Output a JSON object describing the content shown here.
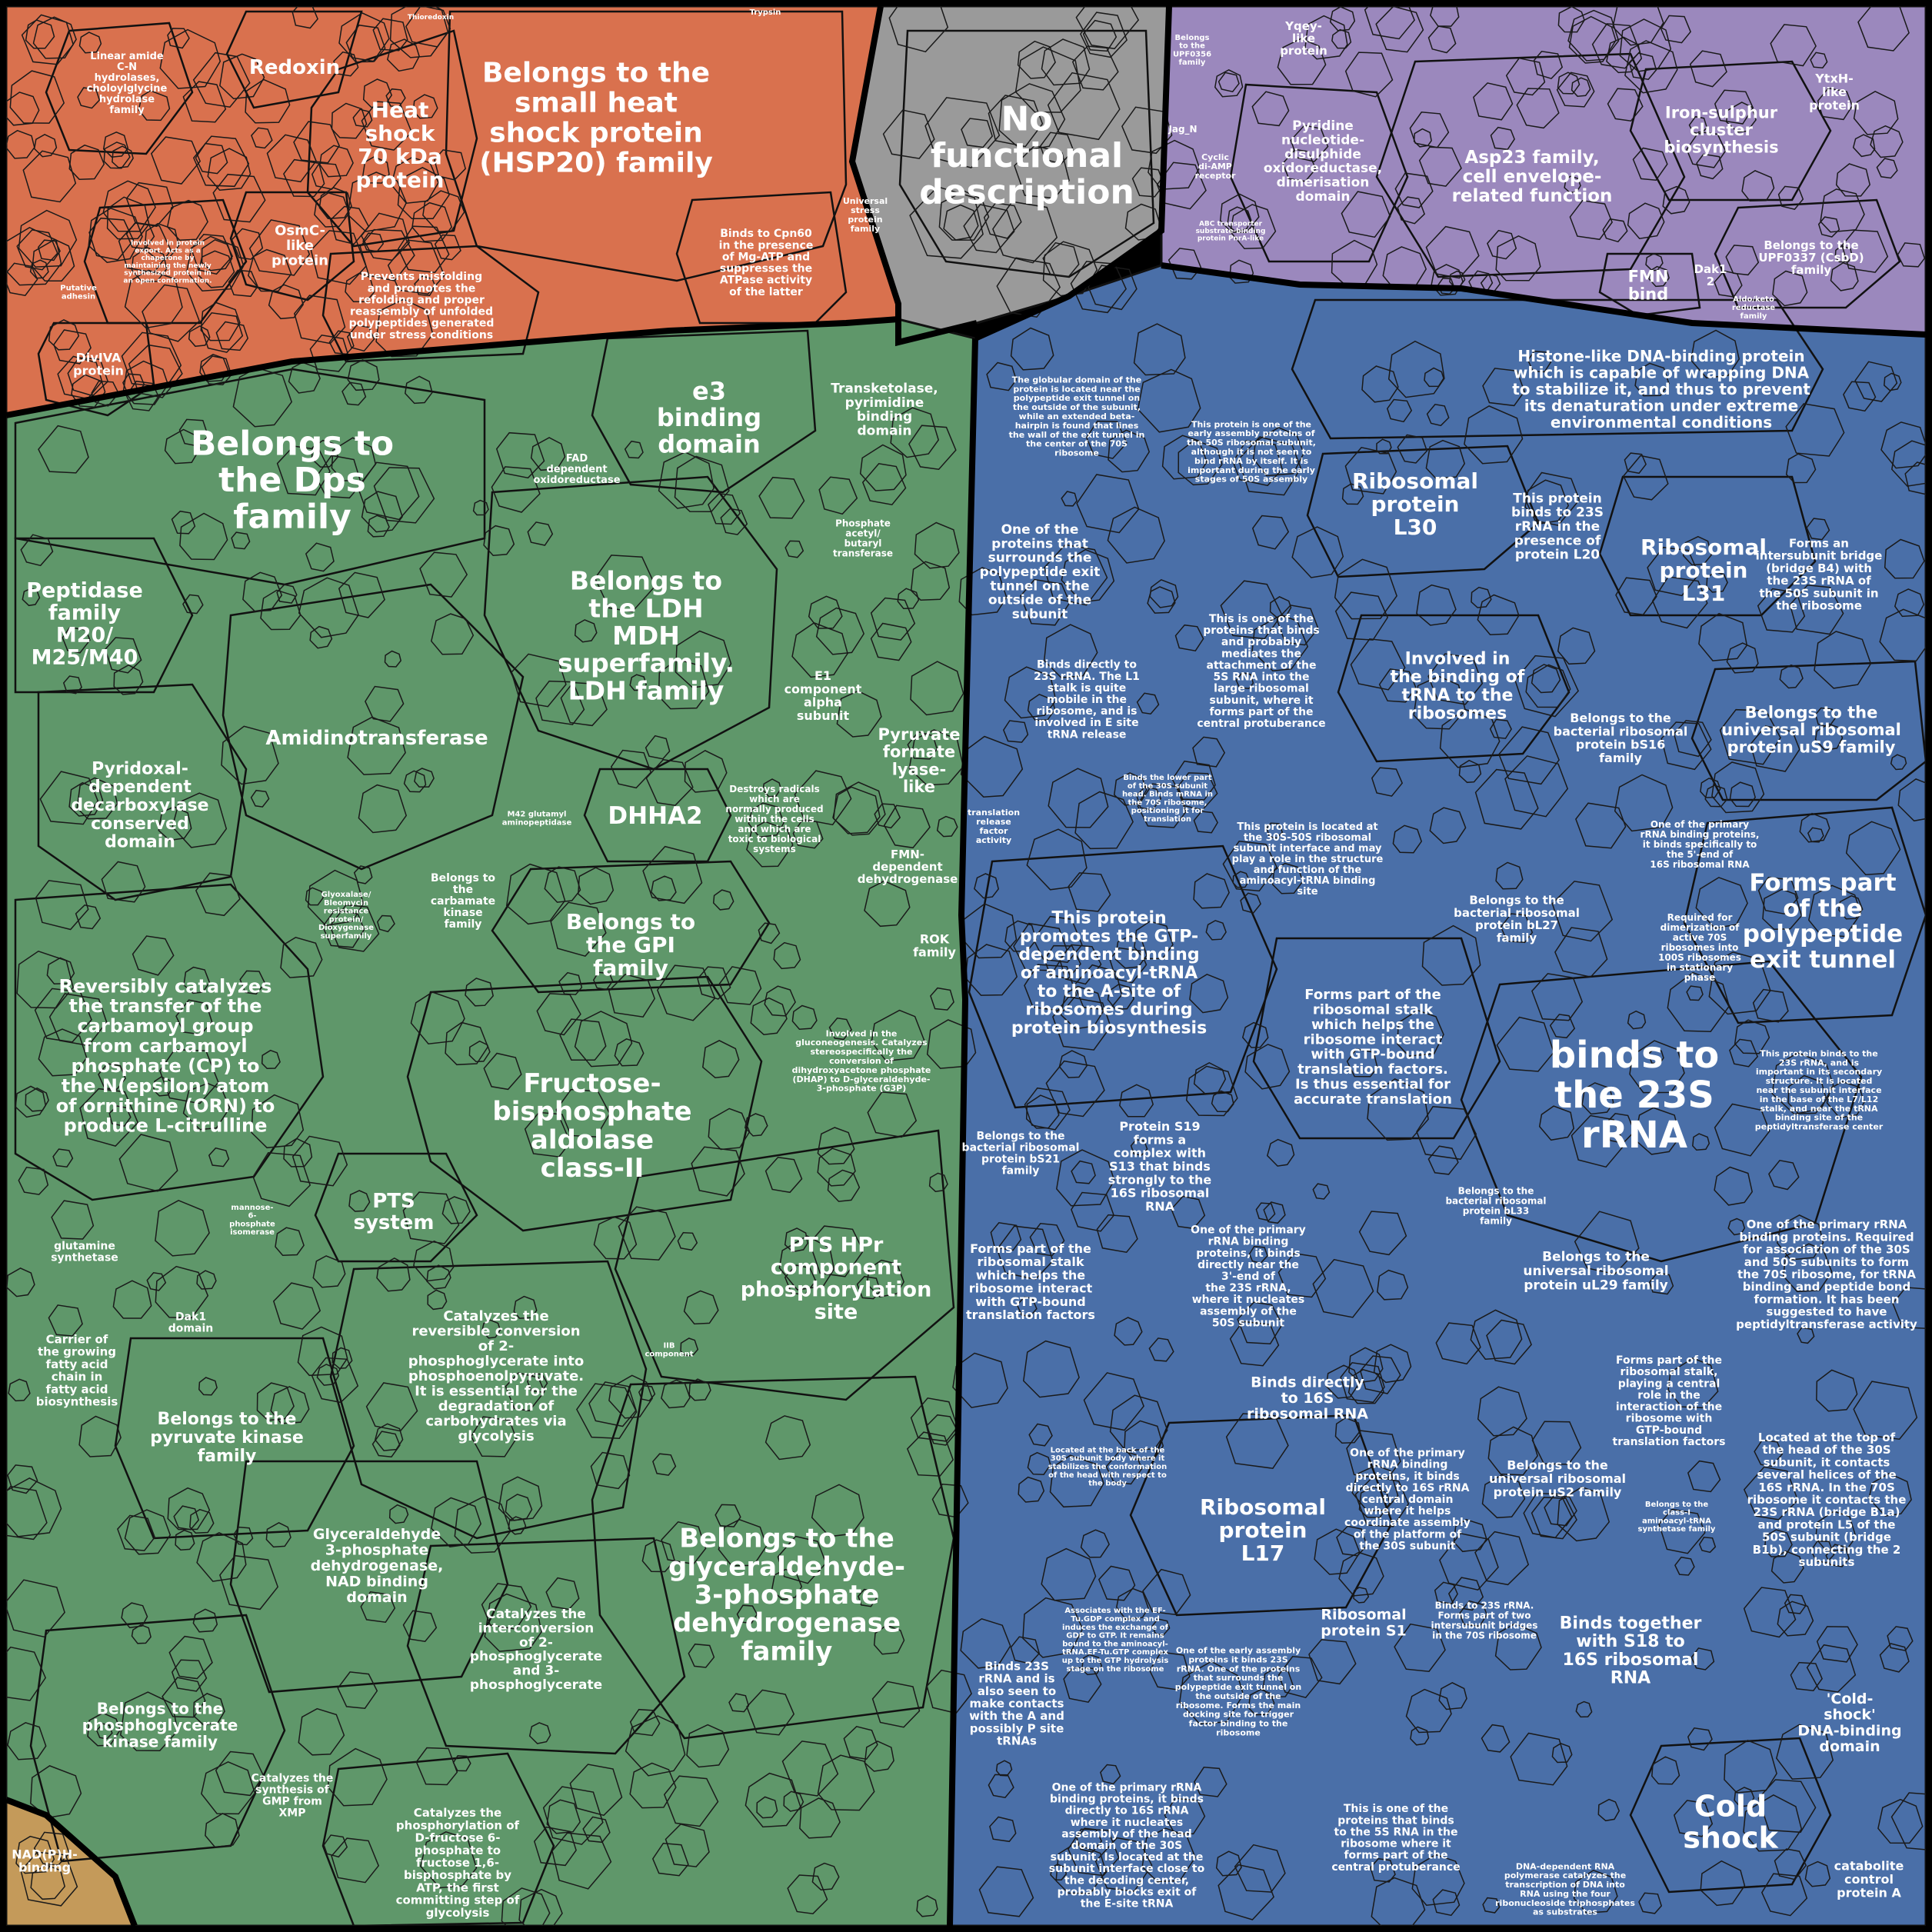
{
  "colors": {
    "orange": "#d9714e",
    "gray": "#9a9a9a",
    "purple": "#9b88bd",
    "green": "#5f976a",
    "blue": "#4a6fa8",
    "tan": "#c49a5a"
  },
  "regions": {
    "orange": {
      "big": [
        "Belongs to the",
        "small heat",
        "shock protein",
        "(HSP20) family"
      ],
      "heat": [
        "Heat",
        "shock",
        "70 kDa",
        "protein"
      ],
      "redoxin": "Redoxin",
      "linear": [
        "Linear amide",
        "C-N",
        "hydrolases,",
        "choloylglycine",
        "hydrolase",
        "family"
      ],
      "osmc": [
        "OsmC-",
        "like",
        "protein"
      ],
      "prevents": [
        "Prevents misfolding",
        "and promotes the",
        "refolding and proper",
        "reassembly of unfolded",
        "polypeptides generated",
        "under stress conditions"
      ],
      "cpn60": [
        "Binds to Cpn60",
        "in the presence",
        "of Mg-ATP and",
        "suppresses the",
        "ATPase activity",
        "of the latter"
      ],
      "universal": [
        "Universal",
        "stress",
        "protein",
        "family"
      ],
      "divIVA": [
        "DivIVA",
        "protein"
      ],
      "putative": [
        "Putative",
        "adhesin"
      ],
      "involved_export": [
        "Involved in protein",
        "export. Acts as a",
        "chaperone by",
        "maintaining the newly",
        "synthesized protein in",
        "an open conformation."
      ],
      "thioredoxin": "Thioredoxin",
      "trypsin": "Trypsin"
    },
    "gray": {
      "label": [
        "No",
        "functional",
        "description"
      ]
    },
    "purple": {
      "asp23": [
        "Asp23 family,",
        "cell envelope-",
        "related function"
      ],
      "pyridine": [
        "Pyridine",
        "nucleotide-",
        "disulphide",
        "oxidoreductase,",
        "dimerisation",
        "domain"
      ],
      "ironsulphur": [
        "Iron-sulphur",
        "cluster",
        "biosynthesis"
      ],
      "yqey": [
        "Yqey-",
        "like",
        "protein"
      ],
      "ytxh": [
        "YtxH-",
        "like",
        "protein"
      ],
      "fmn": [
        "FMN",
        "bind"
      ],
      "dak": [
        "Dak1",
        "2"
      ],
      "upf0337": [
        "Belongs to the",
        "UPF0337 (CsbD)",
        "family"
      ],
      "jag": "Jag_N",
      "cyclic": [
        "Cyclic",
        "di-AMP",
        "receptor"
      ],
      "abc": [
        "ABC transporter",
        "substrate-binding",
        "protein PnrA-like"
      ],
      "upf0356": [
        "Belongs",
        "to the",
        "UPF0356",
        "family"
      ],
      "aldo": [
        "Aldo/keto",
        "reductase",
        "family"
      ]
    },
    "green": {
      "dps": [
        "Belongs to",
        "the Dps",
        "family"
      ],
      "e3": [
        "e3",
        "binding",
        "domain"
      ],
      "transketolase": [
        "Transketolase,",
        "pyrimidine",
        "binding",
        "domain"
      ],
      "fad": [
        "FAD",
        "dependent",
        "oxidoreductase"
      ],
      "ldh": [
        "Belongs to",
        "the LDH",
        "MDH",
        "superfamily.",
        "LDH family"
      ],
      "peptidase": [
        "Peptidase",
        "family",
        "M20/",
        "M25/M40"
      ],
      "amidino": "Amidinotransferase",
      "pyridoxal": [
        "Pyridoxal-",
        "dependent",
        "decarboxylase",
        "conserved",
        "domain"
      ],
      "dhha2": "DHHA2",
      "reversibly": [
        "Reversibly catalyzes",
        "the transfer of the",
        "carbamoyl group",
        "from carbamoyl",
        "phosphate (CP) to",
        "the N(epsilon) atom",
        "of ornithine (ORN) to",
        "produce L-citrulline"
      ],
      "gpi": [
        "Belongs to",
        "the GPI",
        "family"
      ],
      "fructose": [
        "Fructose-",
        "bisphosphate",
        "aldolase",
        "class-II"
      ],
      "pts": [
        "PTS",
        "system"
      ],
      "ptshpr": [
        "PTS HPr",
        "component",
        "phosphorylation",
        "site"
      ],
      "catalyzes_rev": [
        "Catalyzes the",
        "reversible conversion",
        "of 2-",
        "phosphoglycerate into",
        "phosphoenolpyruvate.",
        "It is essential for the",
        "degradation of",
        "carbohydrates via",
        "glycolysis"
      ],
      "pyruvate_kinase": [
        "Belongs to the",
        "pyruvate kinase",
        "family"
      ],
      "gapdh": [
        "Belongs to the",
        "glyceraldehyde-",
        "3-phosphate",
        "dehydrogenase",
        "family"
      ],
      "gapdh_nad": [
        "Glyceraldehyde",
        "3-phosphate",
        "dehydrogenase,",
        "NAD binding",
        "domain"
      ],
      "catalyzes_inter": [
        "Catalyzes the",
        "interconversion",
        "of 2-",
        "phosphoglycerate",
        "and 3-",
        "phosphoglycerate"
      ],
      "pgk": [
        "Belongs to the",
        "phosphoglycerate",
        "kinase family"
      ],
      "gmp": [
        "Catalyzes the",
        "synthesis of",
        "GMP from",
        "XMP"
      ],
      "pfk": [
        "Catalyzes the",
        "phosphorylation of",
        "D-fructose 6-",
        "phosphate to",
        "fructose 1,6-",
        "bisphosphate by",
        "ATP, the first",
        "committing step of",
        "glycolysis"
      ],
      "pyruvate_formate": [
        "Pyruvate",
        "formate",
        "lyase-",
        "like"
      ],
      "e1": [
        "E1",
        "component",
        "alpha",
        "subunit"
      ],
      "destroys": [
        "Destroys radicals",
        "which are",
        "normally produced",
        "within the cells",
        "and which are",
        "toxic to biological",
        "systems"
      ],
      "fmn_dep": [
        "FMN-",
        "dependent",
        "dehydrogenase"
      ],
      "rok": [
        "ROK",
        "family"
      ],
      "phosphate_acetyl": [
        "Phosphate",
        "acetyl/",
        "butaryl",
        "transferase"
      ],
      "carbamate": [
        "Belongs to",
        "the",
        "carbamate",
        "kinase",
        "family"
      ],
      "glutamine": [
        "glutamine",
        "synthetase"
      ],
      "carrier": [
        "Carrier of",
        "the growing",
        "fatty acid",
        "chain in",
        "fatty acid",
        "biosynthesis"
      ],
      "dak1": [
        "Dak1",
        "domain"
      ],
      "m42": [
        "M42 glutamyl",
        "aminopeptidase"
      ],
      "glyoxalase": [
        "Glyoxalase/",
        "Bleomycin",
        "resistance",
        "protein/",
        "Dioxygenase",
        "superfamily"
      ],
      "involved_gluco": [
        "Involved in the",
        "gluconeogenesis. Catalyzes",
        "stereospecifically the",
        "conversion of",
        "dihydroxyacetone phosphate",
        "(DHAP) to D-glyceraldehyde-",
        "3-phosphate (G3P)"
      ],
      "iiB": [
        "IIB",
        "component"
      ],
      "mannose": [
        "mannose-",
        "6-",
        "phosphate",
        "isomerase"
      ]
    },
    "blue": {
      "histone": [
        "Histone-like DNA-binding protein",
        "which is capable of wrapping DNA",
        "to stabilize it, and thus to prevent",
        "its denaturation under extreme",
        "environmental conditions"
      ],
      "l30": [
        "Ribosomal",
        "protein",
        "L30"
      ],
      "l31": [
        "Ribosomal",
        "protein",
        "L31"
      ],
      "this_protein_binds": [
        "This protein",
        "binds to 23S",
        "rRNA in the",
        "presence of",
        "protein L20"
      ],
      "intersubunit": [
        "Forms an",
        "intersubunit bridge",
        "(bridge B4) with",
        "the 23S rRNA of",
        "the 50S subunit in",
        "the ribosome"
      ],
      "involved_trna": [
        "Involved in",
        "the binding of",
        "tRNA to the",
        "ribosomes"
      ],
      "us9": [
        "Belongs to the",
        "universal ribosomal",
        "protein uS9 family"
      ],
      "bs16": [
        "Belongs to the",
        "bacterial ribosomal",
        "protein bS16",
        "family"
      ],
      "exit_tunnel": [
        "Forms part",
        "of the",
        "polypeptide",
        "exit tunnel"
      ],
      "binds23s": [
        "binds to",
        "the 23S",
        "rRNA"
      ],
      "gtp": [
        "This protein",
        "promotes the GTP-",
        "dependent binding",
        "of aminoacyl-tRNA",
        "to the A-site of",
        "ribosomes during",
        "protein biosynthesis"
      ],
      "stalk": [
        "Forms part of the",
        "ribosomal stalk",
        "which helps the",
        "ribosome interact",
        "with GTP-bound",
        "translation factors.",
        "Is thus essential for",
        "accurate translation"
      ],
      "one_of": [
        "One of the",
        "proteins that",
        "surrounds the",
        "polypeptide exit",
        "tunnel on the",
        "outside of the",
        "subunit"
      ],
      "s19": [
        "Protein S19",
        "forms a",
        "complex with",
        "S13 that binds",
        "strongly to the",
        "16S ribosomal",
        "RNA"
      ],
      "bl27": [
        "Belongs to the",
        "bacterial ribosomal",
        "protein bL27",
        "family"
      ],
      "ul29": [
        "Belongs to the",
        "universal ribosomal",
        "protein uL29 family"
      ],
      "l17": [
        "Ribosomal",
        "protein",
        "L17"
      ],
      "s1": [
        "Ribosomal",
        "protein S1"
      ],
      "binds_together": [
        "Binds together",
        "with S18 to",
        "16S ribosomal",
        "RNA"
      ],
      "cold_shock_dna": [
        "&#039;Cold-",
        "shock&#039;",
        "DNA-binding",
        "domain"
      ],
      "cold_shock": [
        "Cold",
        "shock"
      ],
      "binds16s": [
        "Binds directly",
        "to 16S",
        "ribosomal RNA"
      ],
      "us2": [
        "Belongs to the",
        "universal ribosomal",
        "protein uS2 family"
      ],
      "five_s": [
        "This is one of the",
        "proteins that binds",
        "and probably",
        "mediates the",
        "attachment of the",
        "5S RNA into the",
        "large ribosomal",
        "subunit, where it",
        "forms part of the",
        "central protuberance"
      ],
      "located_top": [
        "Located at the top of",
        "the head of the 30S",
        "subunit, it contacts",
        "several helices of the",
        "16S rRNA. In the 70S",
        "ribosome it contacts the",
        "23S rRNA (bridge B1a)",
        "and protein L5 of the",
        "50S subunit (bridge",
        "B1b), connecting the 2",
        "subunits"
      ],
      "primary_rrna": [
        "One of the primary rRNA",
        "binding proteins. Required",
        "for association of the 30S",
        "and 50S subunits to form",
        "the 70S ribosome, for tRNA",
        "binding and peptide bond",
        "formation. It has been",
        "suggested to have",
        "peptidyltransferase activity"
      ],
      "stalk2": [
        "Forms part of the",
        "ribosomal stalk",
        "which helps the",
        "ribosome interact",
        "with GTP-bound",
        "translation factors"
      ],
      "binds23s_trna": [
        "Binds 23S",
        "rRNA and is",
        "also seen to",
        "make contacts",
        "with the A and",
        "possibly P site",
        "tRNAs"
      ],
      "bs21": [
        "Belongs to the",
        "bacterial ribosomal",
        "protein bS21",
        "family"
      ],
      "bl33": [
        "Belongs to the",
        "bacterial ribosomal",
        "protein bL33",
        "family"
      ],
      "catabolite": [
        "catabolite",
        "control",
        "protein A"
      ],
      "binds_5s_central": [
        "This is one of the",
        "proteins that binds",
        "to the 5S RNA in the",
        "ribosome where it",
        "forms part of the",
        "central protuberance"
      ],
      "primary_16s": [
        "One of the primary rRNA",
        "binding proteins, it binds",
        "directly to 16S rRNA",
        "where it nucleates",
        "assembly of the head",
        "domain of the 30S",
        "subunit. Is located at the",
        "subunit interface close to",
        "the decoding center,",
        "probably blocks exit of",
        "the E-site tRNA"
      ],
      "dna_rna_pol": [
        "DNA-dependent RNA",
        "polymerase catalyzes the",
        "transcription of DNA into",
        "RNA using the four",
        "ribonucleoside triphosphates",
        "as substrates"
      ],
      "primary_23s": [
        "One of the primary",
        "rRNA binding",
        "proteins, it binds",
        "directly near the",
        "3&#039;-end of",
        "the 23S rRNA,",
        "where it nucleates",
        "assembly of the",
        "50S subunit"
      ],
      "primary_16s_b": [
        "One of the primary",
        "rRNA binding",
        "proteins, it binds",
        "directly to 16S rRNA",
        "central domain",
        "where it helps",
        "coordinate assembly",
        "of the platform of",
        "the 30S subunit"
      ],
      "l1_stalk": [
        "Binds directly to",
        "23S rRNA. The L1",
        "stalk is quite",
        "mobile in the",
        "ribosome, and is",
        "involved in E site",
        "tRNA release"
      ],
      "stalk3": [
        "Forms part of the",
        "ribosomal stalk,",
        "playing a central",
        "role in the",
        "interaction of the",
        "ribosome with",
        "GTP-bound",
        "translation factors"
      ],
      "required_dim": [
        "Required for",
        "dimerization of",
        "active 70S",
        "ribosomes into",
        "100S ribosomes",
        "in stationary",
        "phase"
      ],
      "primary_3end": [
        "One of the primary",
        "rRNA binding proteins,",
        "it binds specifically to",
        "the 5&#039;-end of",
        "16S ribosomal RNA"
      ],
      "interface": [
        "This protein is located at",
        "the 30S-50S ribosomal",
        "subunit interface and may",
        "play a role in the structure",
        "and function of the",
        "aminoacyl-tRNA binding",
        "site"
      ],
      "binds_l7": [
        "This protein binds to the",
        "23S rRNA, and is",
        "important in its secondary",
        "structure. It is located",
        "near the subunit interface",
        "in the base of the L7/L12",
        "stalk, and near the tRNA",
        "binding site of the",
        "peptidyltransferase center"
      ],
      "globular": [
        "The globular domain of the",
        "protein is located near the",
        "polypeptide exit tunnel on",
        "the outside of the subunit,",
        "while an extended beta-",
        "hairpin is found that lines",
        "the wall of the exit tunnel in",
        "the center of the 70S",
        "ribosome"
      ],
      "early_assembly": [
        "This protein is one of the",
        "early assembly proteins of",
        "the 50S ribosomal subunit,",
        "although it is not seen to",
        "bind rRNA by itself. It is",
        "important during the early",
        "stages of 50S assembly"
      ],
      "binds_lower": [
        "Binds the lower part",
        "of the 30S subunit",
        "head. Binds mRNA in",
        "the 70S ribosome,",
        "positioning it for",
        "translation"
      ],
      "two_bridges": [
        "Binds to 23S rRNA.",
        "Forms part of two",
        "intersubunit bridges",
        "in the 70S ribosome"
      ],
      "early_polypeptide": [
        "One of the early assembly",
        "proteins it binds 23S",
        "rRNA. One of the proteins",
        "that surrounds the",
        "polypeptide exit tunnel on",
        "the outside of the",
        "ribosome. Forms the main",
        "docking site for trigger",
        "factor binding to the",
        "ribosome"
      ],
      "ef_tu": [
        "Associates with the EF-",
        "Tu.GDP complex and",
        "induces the exchange of",
        "GDP to GTP. It remains",
        "bound to the aminoacyl-",
        "tRNA.EF-Tu.GTP complex",
        "up to the GTP hydrolysis",
        "stage on the ribosome"
      ],
      "located_back": [
        "Located at the back of the",
        "30S subunit body where it",
        "stabilizes the conformation",
        "of the head with respect to",
        "the body"
      ],
      "trf": [
        "translation",
        "release",
        "factor",
        "activity"
      ],
      "aminoacyl_synth": [
        "Belongs to the",
        "class-I",
        "aminoacyl-tRNA",
        "synthetase family"
      ]
    },
    "tan": {
      "nadph": [
        "NAD(P)H-",
        "binding"
      ]
    }
  }
}
